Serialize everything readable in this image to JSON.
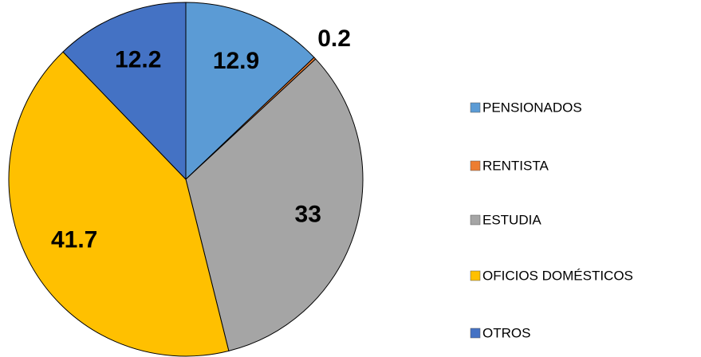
{
  "chart_data": {
    "type": "pie",
    "categories": [
      "PENSIONADOS",
      "RENTISTA",
      "ESTUDIA",
      "OFICIOS DOMÉSTICOS",
      "OTROS"
    ],
    "values": [
      12.9,
      0.2,
      33,
      41.7,
      12.2
    ],
    "colors": [
      "#5b9bd5",
      "#ed7d31",
      "#a5a5a5",
      "#ffc000",
      "#4472c4"
    ],
    "legend": "right"
  }
}
